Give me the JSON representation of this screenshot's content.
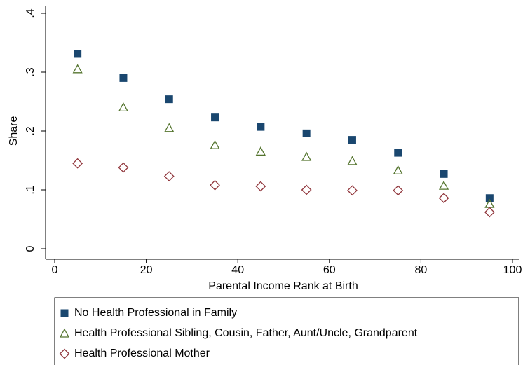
{
  "chart_data": {
    "type": "scatter",
    "x_label": "Parental Income Rank at Birth",
    "y_label": "Share",
    "x": [
      5,
      15,
      25,
      35,
      45,
      55,
      65,
      75,
      85,
      95
    ],
    "series": [
      {
        "name": "No Health Professional in Family",
        "color": "#1a476f",
        "marker": "square",
        "values": [
          0.331,
          0.29,
          0.254,
          0.223,
          0.207,
          0.196,
          0.185,
          0.163,
          0.127,
          0.086
        ]
      },
      {
        "name": "Health Professional Sibling, Cousin, Father, Aunt/Uncle, Grandparent",
        "color": "#55752f",
        "marker": "triangle",
        "values": [
          0.305,
          0.24,
          0.205,
          0.176,
          0.165,
          0.156,
          0.149,
          0.133,
          0.107,
          0.076
        ]
      },
      {
        "name": "Health Professional Mother",
        "color": "#90353b",
        "marker": "diamond",
        "values": [
          0.145,
          0.138,
          0.123,
          0.108,
          0.106,
          0.1,
          0.099,
          0.099,
          0.086,
          0.062
        ]
      }
    ],
    "xlim": [
      0,
      100
    ],
    "xticks": [
      0,
      20,
      40,
      60,
      80,
      100
    ],
    "ylim": [
      0,
      0.4
    ],
    "yticks": [
      0,
      {
        "value": 0.1,
        "label": ".1"
      },
      {
        "value": 0.2,
        "label": ".2"
      },
      {
        "value": 0.3,
        "label": ".3"
      },
      {
        "value": 0.4,
        "label": ".4"
      }
    ],
    "grid": false,
    "legend": "bottom"
  }
}
